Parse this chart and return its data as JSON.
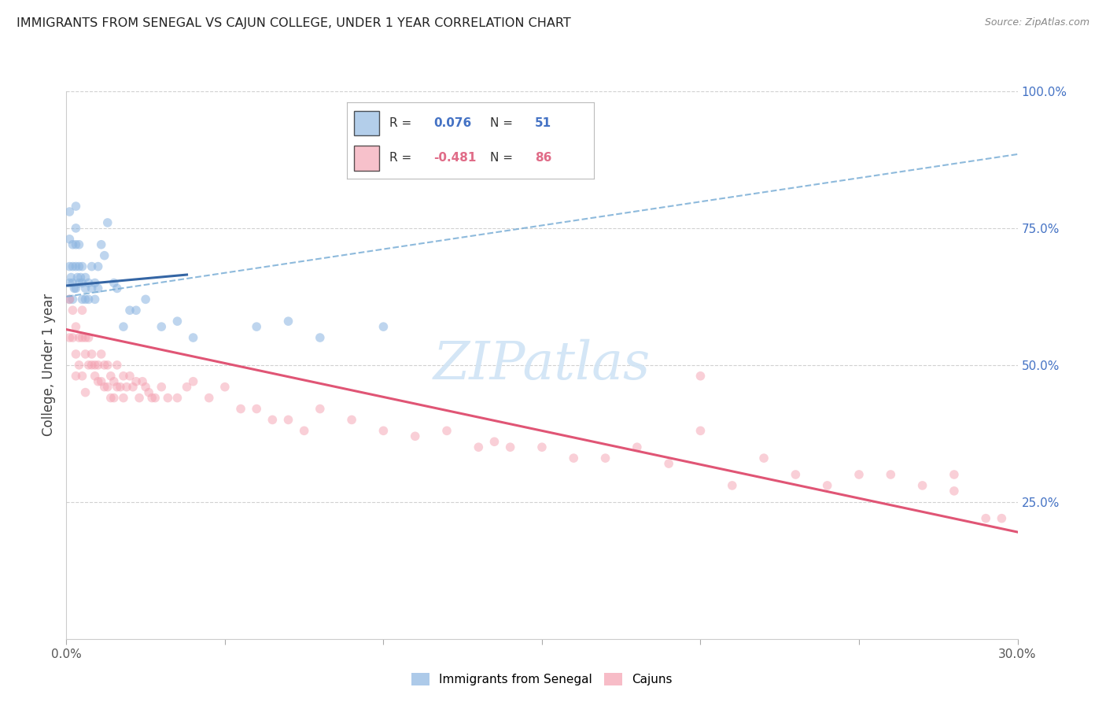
{
  "title": "IMMIGRANTS FROM SENEGAL VS CAJUN COLLEGE, UNDER 1 YEAR CORRELATION CHART",
  "source": "Source: ZipAtlas.com",
  "ylabel": "College, Under 1 year",
  "xlim": [
    0.0,
    0.3
  ],
  "ylim": [
    0.0,
    1.0
  ],
  "right_ytick_positions": [
    0.25,
    0.5,
    0.75,
    1.0
  ],
  "right_ytick_labels": [
    "25.0%",
    "50.0%",
    "75.0%",
    "100.0%"
  ],
  "legend_r_senegal": "0.076",
  "legend_n_senegal": "51",
  "legend_r_cajun": "-0.481",
  "legend_n_cajun": "86",
  "senegal_color": "#8ab4e0",
  "cajun_color": "#f4a0b0",
  "senegal_line_color": "#3465a4",
  "cajun_line_color": "#e05575",
  "dashed_line_color": "#7aaed6",
  "watermark_color": "#d0e4f5",
  "background_color": "#ffffff",
  "grid_color": "#cccccc",
  "senegal_marker_size": 70,
  "cajun_marker_size": 70,
  "senegal_alpha": 0.55,
  "cajun_alpha": 0.5,
  "senegal_line_x0": 0.0,
  "senegal_line_y0": 0.645,
  "senegal_line_x1": 0.038,
  "senegal_line_y1": 0.665,
  "dashed_line_x0": 0.0,
  "dashed_line_y0": 0.625,
  "dashed_line_x1": 0.3,
  "dashed_line_y1": 0.885,
  "cajun_line_x0": 0.0,
  "cajun_line_y0": 0.565,
  "cajun_line_x1": 0.3,
  "cajun_line_y1": 0.195,
  "senegal_x": [
    0.001,
    0.001,
    0.001,
    0.001,
    0.001,
    0.0015,
    0.002,
    0.002,
    0.002,
    0.002,
    0.0025,
    0.003,
    0.003,
    0.003,
    0.003,
    0.003,
    0.0035,
    0.004,
    0.004,
    0.004,
    0.0045,
    0.005,
    0.005,
    0.005,
    0.006,
    0.006,
    0.006,
    0.007,
    0.007,
    0.008,
    0.008,
    0.009,
    0.009,
    0.01,
    0.01,
    0.011,
    0.012,
    0.013,
    0.015,
    0.016,
    0.018,
    0.02,
    0.022,
    0.025,
    0.03,
    0.035,
    0.04,
    0.06,
    0.07,
    0.08,
    0.1
  ],
  "senegal_y": [
    0.78,
    0.73,
    0.68,
    0.65,
    0.62,
    0.66,
    0.72,
    0.68,
    0.65,
    0.62,
    0.64,
    0.79,
    0.75,
    0.72,
    0.68,
    0.64,
    0.66,
    0.72,
    0.68,
    0.65,
    0.66,
    0.68,
    0.65,
    0.62,
    0.66,
    0.64,
    0.62,
    0.65,
    0.62,
    0.68,
    0.64,
    0.65,
    0.62,
    0.68,
    0.64,
    0.72,
    0.7,
    0.76,
    0.65,
    0.64,
    0.57,
    0.6,
    0.6,
    0.62,
    0.57,
    0.58,
    0.55,
    0.57,
    0.58,
    0.55,
    0.57
  ],
  "cajun_x": [
    0.001,
    0.001,
    0.002,
    0.002,
    0.003,
    0.003,
    0.003,
    0.004,
    0.004,
    0.005,
    0.005,
    0.005,
    0.006,
    0.006,
    0.006,
    0.007,
    0.007,
    0.008,
    0.008,
    0.009,
    0.009,
    0.01,
    0.01,
    0.011,
    0.011,
    0.012,
    0.012,
    0.013,
    0.013,
    0.014,
    0.014,
    0.015,
    0.015,
    0.016,
    0.016,
    0.017,
    0.018,
    0.018,
    0.019,
    0.02,
    0.021,
    0.022,
    0.023,
    0.024,
    0.025,
    0.026,
    0.027,
    0.028,
    0.03,
    0.032,
    0.035,
    0.038,
    0.04,
    0.045,
    0.05,
    0.055,
    0.06,
    0.065,
    0.07,
    0.075,
    0.08,
    0.09,
    0.1,
    0.11,
    0.12,
    0.13,
    0.14,
    0.15,
    0.16,
    0.17,
    0.18,
    0.19,
    0.2,
    0.21,
    0.22,
    0.23,
    0.24,
    0.25,
    0.26,
    0.27,
    0.28,
    0.29,
    0.295,
    0.135,
    0.28,
    0.2
  ],
  "cajun_y": [
    0.62,
    0.55,
    0.6,
    0.55,
    0.57,
    0.52,
    0.48,
    0.55,
    0.5,
    0.6,
    0.55,
    0.48,
    0.55,
    0.52,
    0.45,
    0.55,
    0.5,
    0.52,
    0.5,
    0.5,
    0.48,
    0.5,
    0.47,
    0.52,
    0.47,
    0.5,
    0.46,
    0.5,
    0.46,
    0.48,
    0.44,
    0.47,
    0.44,
    0.5,
    0.46,
    0.46,
    0.48,
    0.44,
    0.46,
    0.48,
    0.46,
    0.47,
    0.44,
    0.47,
    0.46,
    0.45,
    0.44,
    0.44,
    0.46,
    0.44,
    0.44,
    0.46,
    0.47,
    0.44,
    0.46,
    0.42,
    0.42,
    0.4,
    0.4,
    0.38,
    0.42,
    0.4,
    0.38,
    0.37,
    0.38,
    0.35,
    0.35,
    0.35,
    0.33,
    0.33,
    0.35,
    0.32,
    0.38,
    0.28,
    0.33,
    0.3,
    0.28,
    0.3,
    0.3,
    0.28,
    0.3,
    0.22,
    0.22,
    0.36,
    0.27,
    0.48
  ]
}
